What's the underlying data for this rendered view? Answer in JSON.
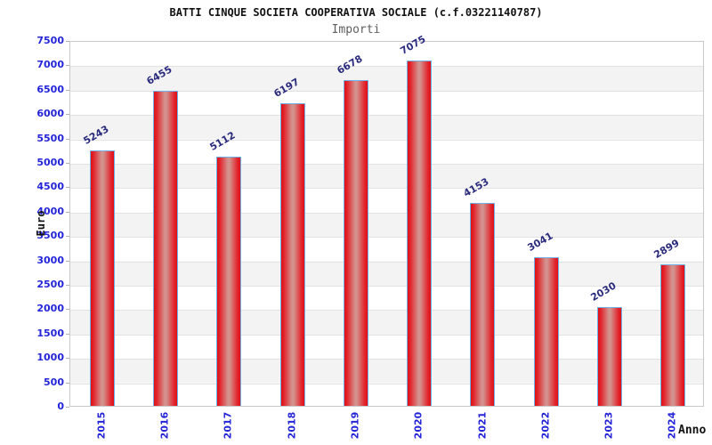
{
  "header": {
    "title": "BATTI CINQUE SOCIETA COOPERATIVA SOCIALE (c.f.03221140787)",
    "subtitle": "Importi"
  },
  "chart_data": {
    "type": "bar",
    "title": "BATTI CINQUE SOCIETA COOPERATIVA SOCIALE (c.f.03221140787)",
    "subtitle": "Importi",
    "xlabel": "Anno",
    "ylabel": "Euro",
    "categories": [
      "2015",
      "2016",
      "2017",
      "2018",
      "2019",
      "2020",
      "2021",
      "2022",
      "2023",
      "2024"
    ],
    "values": [
      5243,
      6455,
      5112,
      6197,
      6678,
      7075,
      4153,
      3041,
      2030,
      2899
    ],
    "ylim": [
      0,
      7500
    ],
    "ytick_step": 500,
    "ytick_labels": [
      "0",
      "500",
      "1000",
      "1500",
      "2000",
      "2500",
      "3000",
      "3500",
      "4000",
      "4500",
      "5000",
      "5500",
      "6000",
      "6500",
      "7000",
      "7500"
    ],
    "grid": "horizontal-bands-alternating",
    "legend": "none",
    "value_labels_rotation_deg": -30,
    "xtick_rotation_deg": -90
  },
  "colors": {
    "bar_red": "#de1016",
    "bar_center_highlight": "#d4928e",
    "bar_border_blue": "#6fb2e8",
    "tick_label_blue": "#2424d9",
    "value_label_navy": "#2b2b7e",
    "band_gray": "#f3f3f3",
    "gridline_gray": "#e2e2e2",
    "plot_border_gray": "#c9c9c9",
    "title_black": "#121212",
    "subtitle_gray": "#5e5e5e"
  }
}
